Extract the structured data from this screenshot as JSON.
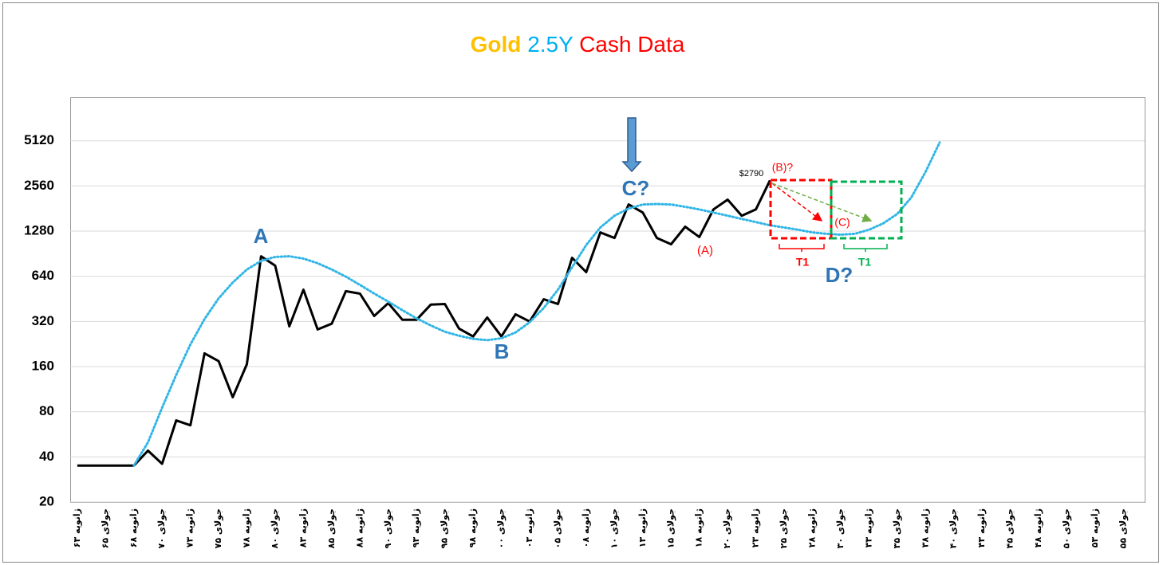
{
  "chart_data": {
    "type": "line",
    "title_parts": [
      {
        "text": "Gold",
        "color": "#ffc000"
      },
      {
        "text": "2.5Y",
        "color": "#00b0f0"
      },
      {
        "text": "Cash Data",
        "color": "#ff0000"
      }
    ],
    "log_scale": true,
    "grid": true,
    "ylim": [
      20,
      10000
    ],
    "yticks": [
      20,
      40,
      80,
      160,
      320,
      640,
      1280,
      2560,
      5120
    ],
    "categories": [
      "ژانویه ۶۳",
      null,
      "جولای ۶۵",
      null,
      "ژانویه ۶۸",
      null,
      "جولای ۷۰",
      null,
      "ژانویه ۷۳",
      null,
      "جولای ۷۵",
      null,
      "ژانویه ۷۸",
      null,
      "جولای ۸۰",
      null,
      "ژانویه ۸۳",
      null,
      "جولای ۸۵",
      null,
      "ژانویه ۸۸",
      null,
      "جولای ۹۰",
      null,
      "ژانویه ۹۳",
      null,
      "جولای ۹۵",
      null,
      "ژانویه ۹۸",
      null,
      "جولای ۰۰",
      null,
      "ژانویه ۰۳",
      null,
      "جولای ۰۵",
      null,
      "ژانویه ۰۸",
      null,
      "جولای ۱۰",
      null,
      "ژانویه ۱۳",
      null,
      "جولای ۱۵",
      null,
      "ژانویه ۱۸",
      null,
      "جولای ۲۰",
      null,
      "ژانویه ۲۳",
      null,
      "جولای ۲۵",
      null,
      "ژانویه ۲۸",
      null,
      "جولای ۳۰",
      null,
      "ژانویه ۳۳",
      null,
      "جولای ۳۵",
      null,
      "ژانویه ۳۸",
      null,
      "جولای ۴۰",
      null,
      "ژانویه ۴۳",
      null,
      "جولای ۴۵",
      null,
      "ژانویه ۴۸",
      null,
      "جولای ۵۰",
      null,
      "ژانویه ۵۳",
      null,
      "جولای ۵۵",
      null
    ],
    "series": [
      {
        "color": "#000000",
        "style": "solid",
        "values": [
          35,
          35,
          35,
          35,
          35,
          44,
          36,
          70,
          65,
          196,
          174,
          100,
          166,
          870,
          753,
          297,
          521,
          283,
          309,
          509,
          490,
          348,
          424,
          328,
          328,
          414,
          418,
          287,
          254,
          340,
          254,
          357,
          320,
          450,
          418,
          850,
          682,
          1255,
          1153,
          1927,
          1703,
          1153,
          1047,
          1370,
          1170,
          1787,
          2077,
          1622,
          1787,
          2790,
          null,
          null,
          null,
          null,
          null,
          null,
          null,
          null,
          null,
          null,
          null,
          null,
          null,
          null,
          null,
          null,
          null,
          null,
          null,
          null,
          null,
          null,
          null,
          null,
          null,
          null
        ]
      },
      {
        "color": "#2fb5e6",
        "style": "dotted",
        "values": [
          null,
          null,
          null,
          null,
          35,
          50,
          85,
          141,
          225,
          332,
          456,
          582,
          710,
          810,
          862,
          870,
          840,
          782,
          710,
          636,
          561,
          491,
          434,
          380,
          336,
          301,
          273,
          257,
          245,
          240,
          247,
          270,
          316,
          394,
          521,
          735,
          1034,
          1353,
          1622,
          1810,
          1927,
          1940,
          1927,
          1860,
          1787,
          1703,
          1622,
          1545,
          1471,
          1400,
          1353,
          1307,
          1255,
          1228,
          1212,
          1228,
          1307,
          1440,
          1665,
          2150,
          3180,
          4990,
          null,
          null,
          null,
          null,
          null,
          null,
          null,
          null,
          null,
          null,
          null,
          null,
          null,
          null
        ]
      }
    ],
    "annotations": [
      {
        "text": "A",
        "color": "#2e75b6"
      },
      {
        "text": "B",
        "color": "#2e75b6"
      },
      {
        "text": "C?",
        "color": "#2e75b6"
      },
      {
        "text": "D?",
        "color": "#2e75b6"
      },
      {
        "text": "(A)",
        "color": "#ff0000"
      },
      {
        "text": "(B)?",
        "color": "#ff0000"
      },
      {
        "text": "(C)",
        "color": "#ff0000"
      },
      {
        "text": "$2790",
        "color": "#000000"
      },
      {
        "text": "T1",
        "color": "#ff0000"
      },
      {
        "text": "T1",
        "color": "#00b050"
      }
    ]
  }
}
